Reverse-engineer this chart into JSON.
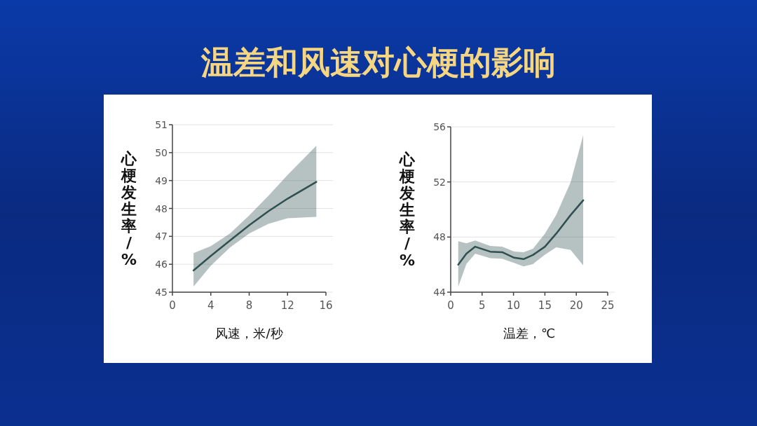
{
  "chart_data": [
    {
      "type": "line",
      "title": "温差和风速对心梗的影响",
      "xlabel": "风速，米/秒",
      "ylabel": "心梗发生率/%",
      "xlim": [
        0,
        16
      ],
      "xticks": [
        0,
        4,
        8,
        12,
        16
      ],
      "ylim": [
        45,
        51
      ],
      "yticks": [
        45,
        46,
        47,
        48,
        49,
        50,
        51
      ],
      "grid": "y",
      "series": [
        {
          "color": "#2f4f50",
          "x": [
            2.2,
            4,
            6,
            8,
            10,
            12,
            15
          ],
          "values": [
            45.78,
            46.3,
            46.85,
            47.4,
            47.9,
            48.35,
            48.95
          ],
          "lower": [
            45.2,
            45.95,
            46.6,
            47.1,
            47.45,
            47.65,
            47.7
          ],
          "upper": [
            46.4,
            46.65,
            47.1,
            47.75,
            48.45,
            49.2,
            50.25
          ]
        }
      ]
    },
    {
      "type": "line",
      "xlabel": "温差，℃",
      "ylabel": "心梗发生率/%",
      "xlim": [
        0,
        25
      ],
      "xticks": [
        0,
        5,
        10,
        15,
        20,
        25
      ],
      "ylim": [
        44,
        56
      ],
      "yticks": [
        44,
        48,
        52,
        56
      ],
      "grid": "y",
      "series": [
        {
          "color": "#2f4f50",
          "x": [
            1.2,
            2.5,
            3.9,
            6.3,
            8.2,
            10.1,
            11.6,
            13.1,
            15,
            16.8,
            19.1,
            21.1
          ],
          "values": [
            46.0,
            46.8,
            47.3,
            46.94,
            46.9,
            46.5,
            46.4,
            46.7,
            47.3,
            48.25,
            49.6,
            50.67
          ],
          "lower": [
            44.4,
            46.05,
            46.8,
            46.46,
            46.43,
            46.12,
            45.87,
            46.04,
            46.72,
            47.26,
            47.06,
            45.95
          ],
          "upper": [
            47.7,
            47.55,
            47.75,
            47.35,
            47.3,
            46.95,
            46.9,
            47.15,
            48.25,
            49.6,
            51.98,
            55.4
          ]
        }
      ]
    }
  ]
}
